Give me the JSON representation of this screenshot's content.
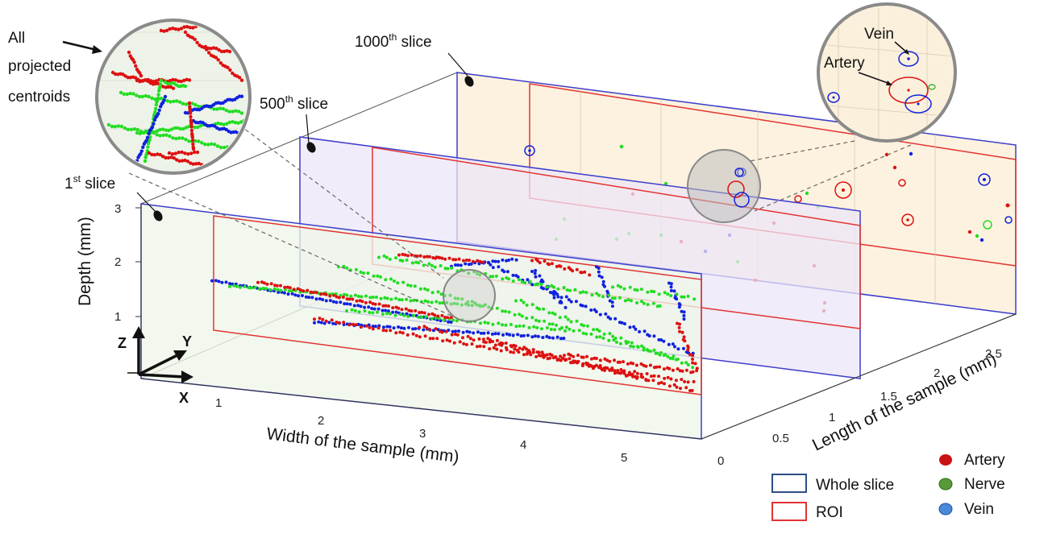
{
  "annotations": {
    "slice_1": "1",
    "slice_1_sup": "st",
    "slice_1_suffix": " slice",
    "slice_500": "500",
    "slice_500_sup": "th",
    "slice_500_suffix": " slice",
    "slice_1000": "1000",
    "slice_1000_sup": "th",
    "slice_1000_suffix": " slice",
    "all_projected_line1": "All",
    "all_projected_line2": "projected",
    "all_projected_line3": "centroids",
    "zoom_vein": "Vein",
    "zoom_artery": "Artery"
  },
  "axes": {
    "depth_title": "Depth (mm)",
    "width_title": "Width of the sample (mm)",
    "length_title": "Length of the sample (mm)",
    "depth_ticks": [
      "1",
      "2",
      "3"
    ],
    "width_ticks": [
      "1",
      "2",
      "3",
      "4",
      "5"
    ],
    "length_ticks": [
      "0",
      "0.5",
      "1",
      "1.5",
      "2",
      "2.5"
    ],
    "orient_z": "Z",
    "orient_y": "Y",
    "orient_x": "X"
  },
  "legend": {
    "whole_slice": "Whole slice",
    "roi": "ROI",
    "artery": "Artery",
    "nerve": "Nerve",
    "vein": "Vein"
  },
  "colors": {
    "artery": "#dd1111",
    "nerve": "#22dd22",
    "vein": "#1122dd",
    "whole_slice_box": "#2e4e86",
    "roi_box": "#e23333",
    "slice_1_fill": "#eef6e8",
    "slice_500_fill": "#ece6f7",
    "slice_1000_fill": "#fdf1dc"
  }
}
